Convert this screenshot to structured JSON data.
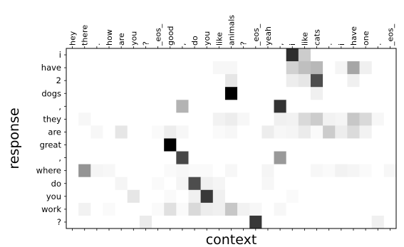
{
  "chart_data": {
    "type": "heatmap",
    "title": "",
    "xlabel": "context",
    "ylabel": "response",
    "x_categories": [
      "hey",
      "there",
      ".",
      "how",
      "are",
      "you",
      "?",
      "_eos_",
      "good",
      ",",
      "do",
      "you",
      "like",
      "animals",
      "?",
      "_eos_",
      "yeah",
      ",",
      "i",
      "like",
      "cats",
      ".",
      "i",
      "have",
      "one",
      ".",
      "_eos_"
    ],
    "y_categories": [
      "i",
      "have",
      "2",
      "dogs",
      ",",
      "they",
      "are",
      "great",
      ",",
      "where",
      "do",
      "you",
      "work",
      "?"
    ],
    "value_range": [
      0,
      1
    ],
    "colormap": "white-to-black (greys)",
    "values": [
      [
        0,
        0,
        0,
        0,
        0,
        0,
        0,
        0,
        0,
        0,
        0,
        0,
        0,
        0,
        0,
        0,
        0,
        0,
        0.82,
        0.2,
        0,
        0,
        0,
        0,
        0,
        0,
        0
      ],
      [
        0,
        0,
        0,
        0,
        0,
        0,
        0,
        0,
        0,
        0,
        0,
        0,
        0.03,
        0.03,
        0,
        0,
        0,
        0,
        0.18,
        0.25,
        0.28,
        0,
        0.04,
        0.35,
        0.06,
        0,
        0
      ],
      [
        0,
        0,
        0,
        0,
        0,
        0,
        0,
        0,
        0,
        0,
        0,
        0,
        0,
        0.1,
        0,
        0,
        0,
        0,
        0.07,
        0.1,
        0.7,
        0,
        0,
        0.06,
        0,
        0,
        0
      ],
      [
        0,
        0,
        0,
        0,
        0,
        0,
        0,
        0,
        0,
        0,
        0,
        0,
        0,
        1.0,
        0,
        0,
        0,
        0,
        0,
        0,
        0.06,
        0,
        0,
        0,
        0,
        0,
        0
      ],
      [
        0,
        0,
        0,
        0,
        0,
        0,
        0,
        0,
        0,
        0.3,
        0,
        0,
        0,
        0,
        0,
        0,
        0,
        0.8,
        0,
        0,
        0,
        0,
        0,
        0,
        0,
        0,
        0
      ],
      [
        0,
        0.03,
        0,
        0,
        0,
        0,
        0,
        0,
        0,
        0,
        0,
        0,
        0.05,
        0.07,
        0.03,
        0,
        0,
        0.06,
        0.05,
        0.15,
        0.2,
        0.05,
        0.04,
        0.22,
        0.15,
        0.03,
        0
      ],
      [
        0,
        0,
        0.03,
        0,
        0.1,
        0,
        0,
        0.02,
        0.07,
        0.03,
        0,
        0,
        0.02,
        0.03,
        0,
        0,
        0.07,
        0.03,
        0.04,
        0.08,
        0.02,
        0.2,
        0.07,
        0.14,
        0.05,
        0,
        0
      ],
      [
        0,
        0,
        0,
        0,
        0,
        0,
        0,
        0,
        1.0,
        0,
        0,
        0,
        0,
        0,
        0,
        0,
        0,
        0,
        0,
        0,
        0,
        0,
        0,
        0,
        0,
        0,
        0
      ],
      [
        0,
        0,
        0,
        0,
        0,
        0,
        0,
        0,
        0,
        0.72,
        0,
        0,
        0,
        0,
        0,
        0,
        0,
        0.4,
        0,
        0,
        0,
        0,
        0,
        0,
        0,
        0,
        0
      ],
      [
        0,
        0.42,
        0.04,
        0.03,
        0,
        0,
        0,
        0,
        0.02,
        0.03,
        0.02,
        0.02,
        0,
        0.03,
        0,
        0,
        0.04,
        0,
        0,
        0,
        0.03,
        0.02,
        0.05,
        0.04,
        0.02,
        0,
        0.03
      ],
      [
        0,
        0,
        0,
        0,
        0.04,
        0,
        0,
        0.02,
        0,
        0.04,
        0.7,
        0.06,
        0.04,
        0,
        0,
        0,
        0.03,
        0,
        0,
        0,
        0,
        0,
        0,
        0,
        0,
        0,
        0
      ],
      [
        0,
        0,
        0,
        0,
        0,
        0.1,
        0,
        0,
        0.02,
        0,
        0.06,
        0.78,
        0.06,
        0,
        0,
        0,
        0,
        0,
        0.02,
        0,
        0,
        0,
        0,
        0,
        0,
        0,
        0
      ],
      [
        0,
        0.05,
        0,
        0.02,
        0,
        0,
        0,
        0.02,
        0.12,
        0.02,
        0.15,
        0.07,
        0.06,
        0.22,
        0.05,
        0.03,
        0,
        0.03,
        0,
        0,
        0,
        0,
        0,
        0,
        0,
        0,
        0
      ],
      [
        0,
        0,
        0,
        0,
        0,
        0,
        0.08,
        0,
        0,
        0,
        0,
        0,
        0,
        0,
        0,
        0.78,
        0,
        0,
        0,
        0,
        0,
        0,
        0,
        0,
        0,
        0.06,
        0
      ]
    ]
  }
}
